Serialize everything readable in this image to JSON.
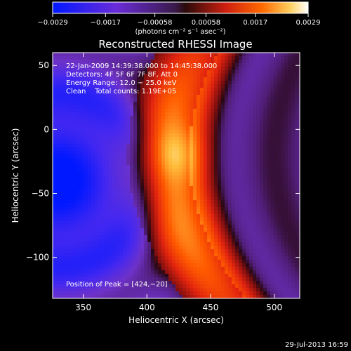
{
  "chart_data": {
    "type": "heatmap",
    "title": "Reconstructed RHESSI Image",
    "xlabel": "Heliocentric X (arcsec)",
    "ylabel": "Heliocentric Y (arcsec)",
    "xlim": [
      326,
      520
    ],
    "ylim": [
      -132,
      60
    ],
    "x_ticks": [
      350,
      400,
      450,
      500
    ],
    "y_ticks": [
      50,
      0,
      -50,
      -100
    ],
    "x_tick_labels": [
      "350",
      "400",
      "450",
      "500"
    ],
    "y_tick_labels": [
      "50",
      "0",
      "−50",
      "−100"
    ],
    "colorbar": {
      "min": -0.0029,
      "max": 0.0029,
      "ticks": [
        -0.0029,
        -0.0017,
        -0.00058,
        0.00058,
        0.0017,
        0.0029
      ],
      "tick_labels": [
        "−0.0029",
        "−0.0017",
        "−0.00058",
        "0.00058",
        "0.0017",
        "0.0029"
      ],
      "unit_label": "(photons cm⁻² s⁻¹ asec⁻²)"
    },
    "info_lines": [
      "22-Jan-2009 14:39:38.000 to 14:45:38.000",
      "Detectors: 4F 5F 6F 7F 8F, Att 0",
      "Energy Range: 12.0 − 25.0 keV",
      "Clean    Total counts: 1.19E+05"
    ],
    "peak_label": "Position of Peak = [424,−20]",
    "peak_position": [
      424,
      -20
    ]
  },
  "footer": {
    "timestamp": "29-Jul-2013 16:59"
  },
  "colors": {
    "background": "#000000",
    "text": "#ffffff"
  }
}
